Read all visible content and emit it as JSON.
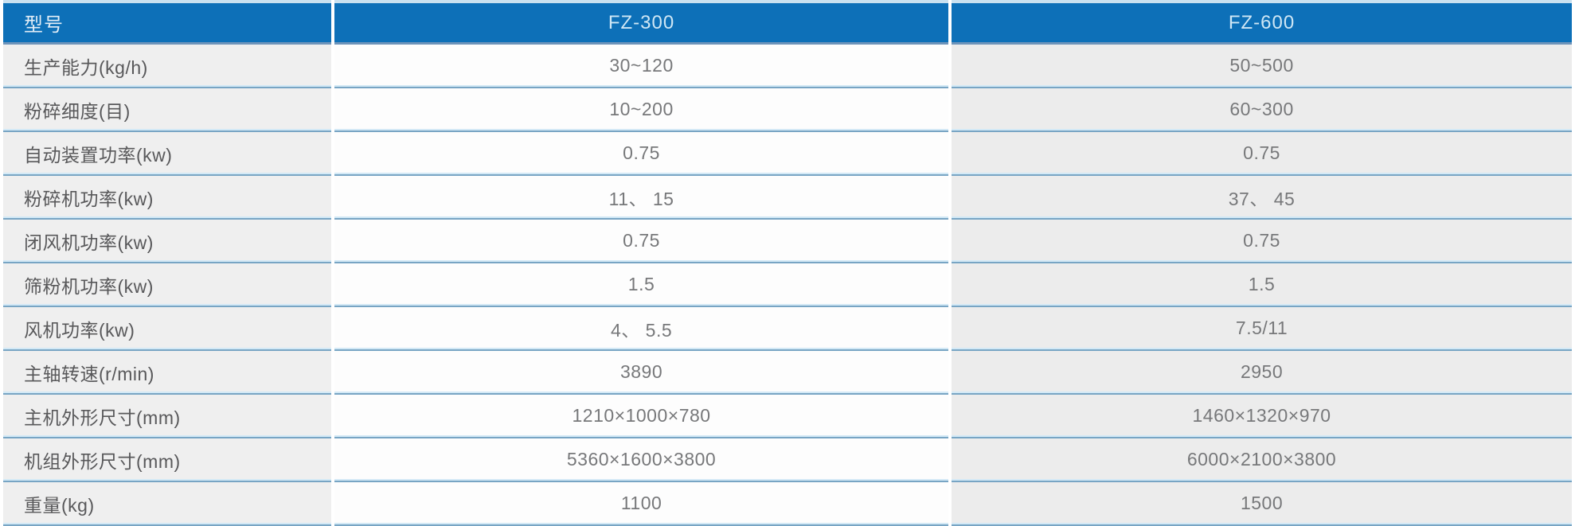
{
  "colors": {
    "header_bg": "#0d70b8",
    "header_text": "#cfe7f5",
    "top_line": "#c9e1f0",
    "header_border_bottom": "#6e94ba",
    "row_border_light": "#d3e9f6",
    "row_border_steel": "#78a5c4",
    "label_col_bg": "#efefef",
    "fz300_col_bg": "#fdfdfd",
    "fz600_col_bg": "#ececec",
    "label_text": "#58585a",
    "value_text": "#77787a"
  },
  "table": {
    "header": {
      "model_label": "型号",
      "fz300_label": "FZ-300",
      "fz600_label": "FZ-600"
    },
    "rows": [
      {
        "label": "生产能力(kg/h)",
        "fz300": "30~120",
        "fz600": "50~500"
      },
      {
        "label": "粉碎细度(目)",
        "fz300": "10~200",
        "fz600": "60~300"
      },
      {
        "label": "自动装置功率(kw)",
        "fz300": "0.75",
        "fz600": "0.75"
      },
      {
        "label": "粉碎机功率(kw)",
        "fz300": "11、 15",
        "fz600": "37、 45"
      },
      {
        "label": "闭风机功率(kw)",
        "fz300": "0.75",
        "fz600": "0.75"
      },
      {
        "label": "筛粉机功率(kw)",
        "fz300": "1.5",
        "fz600": "1.5"
      },
      {
        "label": "风机功率(kw)",
        "fz300": "4、 5.5",
        "fz600": "7.5/11"
      },
      {
        "label": "主轴转速(r/min)",
        "fz300": "3890",
        "fz600": "2950"
      },
      {
        "label": "主机外形尺寸(mm)",
        "fz300": "1210×1000×780",
        "fz600": "1460×1320×970"
      },
      {
        "label": "机组外形尺寸(mm)",
        "fz300": "5360×1600×3800",
        "fz600": "6000×2100×3800"
      },
      {
        "label": "重量(kg)",
        "fz300": "1100",
        "fz600": "1500"
      }
    ]
  }
}
